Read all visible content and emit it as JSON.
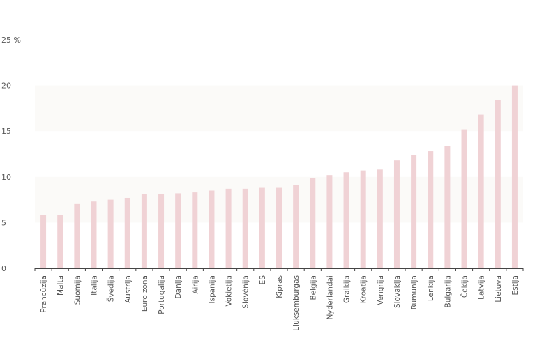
{
  "chart_data": {
    "type": "bar",
    "categories": [
      "Prancūzija",
      "Malta",
      "Suomija",
      "Italija",
      "Švedija",
      "Austrija",
      "Euro zona",
      "Portugalija",
      "Danija",
      "Airija",
      "Ispanija",
      "Vokietija",
      "Slovėnija",
      "ES",
      "Kipras",
      "Liuksemburgas",
      "Belgija",
      "Nyderlandai",
      "Graikija",
      "Kroatija",
      "Vengrija",
      "Slovakija",
      "Rumunija",
      "Lenkija",
      "Bulgarija",
      "Čekija",
      "Latvija",
      "Lietuva",
      "Estija"
    ],
    "values": [
      5.8,
      5.8,
      7.1,
      7.3,
      7.5,
      7.7,
      8.1,
      8.1,
      8.2,
      8.3,
      8.5,
      8.7,
      8.7,
      8.8,
      8.8,
      9.1,
      9.9,
      10.2,
      10.5,
      10.7,
      10.8,
      11.8,
      12.4,
      12.8,
      13.4,
      15.2,
      16.8,
      18.4,
      20.0
    ],
    "ylim": [
      0,
      25
    ],
    "yticks": [
      "0",
      "5",
      "10",
      "15",
      "20",
      "25 %"
    ],
    "title": "",
    "xlabel": "",
    "ylabel": "",
    "grid": "alternating horizontal bands",
    "legend": "none"
  },
  "colors": {
    "bar": "#f0d2d5",
    "band": "#fbfaf8",
    "axis": "#444444",
    "text": "#555555"
  }
}
